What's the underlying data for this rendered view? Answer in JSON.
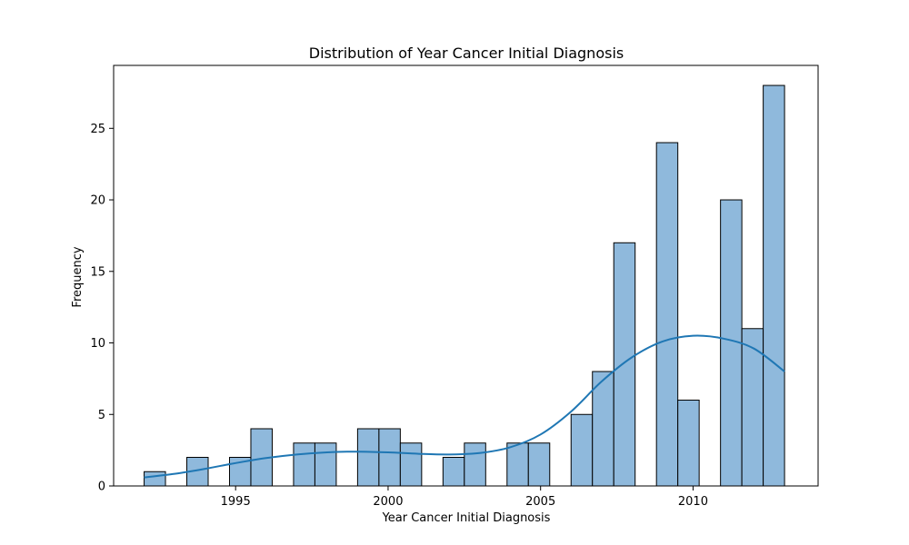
{
  "chart_data": {
    "type": "bar",
    "subtype": "histogram-with-kde",
    "title": "Distribution of Year Cancer Initial Diagnosis",
    "xlabel": "Year Cancer Initial Diagnosis",
    "ylabel": "Frequency",
    "xlim": [
      1991.0,
      2014.1
    ],
    "ylim": [
      0,
      29.4
    ],
    "xticks": [
      1995,
      2000,
      2005,
      2010
    ],
    "yticks": [
      0,
      5,
      10,
      15,
      20,
      25
    ],
    "grid": false,
    "bins": [
      {
        "start": 1992.0,
        "end": 1992.7,
        "count": 1
      },
      {
        "start": 1993.4,
        "end": 1994.1,
        "count": 2
      },
      {
        "start": 1994.8,
        "end": 1995.5,
        "count": 2
      },
      {
        "start": 1995.5,
        "end": 1996.2,
        "count": 4
      },
      {
        "start": 1996.9,
        "end": 1997.6,
        "count": 3
      },
      {
        "start": 1997.6,
        "end": 1998.3,
        "count": 3
      },
      {
        "start": 1999.0,
        "end": 1999.7,
        "count": 4
      },
      {
        "start": 1999.7,
        "end": 2000.4,
        "count": 4
      },
      {
        "start": 2000.4,
        "end": 2001.1,
        "count": 3
      },
      {
        "start": 2001.8,
        "end": 2002.5,
        "count": 2
      },
      {
        "start": 2002.5,
        "end": 2003.2,
        "count": 3
      },
      {
        "start": 2003.9,
        "end": 2004.6,
        "count": 3
      },
      {
        "start": 2004.6,
        "end": 2005.3,
        "count": 3
      },
      {
        "start": 2006.0,
        "end": 2006.7,
        "count": 5
      },
      {
        "start": 2006.7,
        "end": 2007.4,
        "count": 8
      },
      {
        "start": 2007.4,
        "end": 2008.1,
        "count": 17
      },
      {
        "start": 2008.8,
        "end": 2009.5,
        "count": 24
      },
      {
        "start": 2009.5,
        "end": 2010.2,
        "count": 6
      },
      {
        "start": 2010.9,
        "end": 2011.6,
        "count": 20
      },
      {
        "start": 2011.6,
        "end": 2012.3,
        "count": 11
      },
      {
        "start": 2012.3,
        "end": 2013.0,
        "count": 28
      }
    ],
    "kde": {
      "x": [
        1992.0,
        1993.0,
        1994.0,
        1995.0,
        1996.0,
        1997.0,
        1998.0,
        1999.0,
        2000.0,
        2001.0,
        2002.0,
        2003.0,
        2004.0,
        2005.0,
        2006.0,
        2007.0,
        2008.0,
        2009.0,
        2010.0,
        2011.0,
        2012.0,
        2013.0
      ],
      "y": [
        0.6,
        0.85,
        1.2,
        1.6,
        1.95,
        2.2,
        2.35,
        2.4,
        2.35,
        2.25,
        2.2,
        2.3,
        2.7,
        3.6,
        5.2,
        7.3,
        9.0,
        10.1,
        10.5,
        10.3,
        9.6,
        8.0
      ]
    },
    "colors": {
      "bar_fill": "#8fb9dc",
      "bar_edge": "#000000",
      "kde_line": "#1f77b4"
    }
  }
}
